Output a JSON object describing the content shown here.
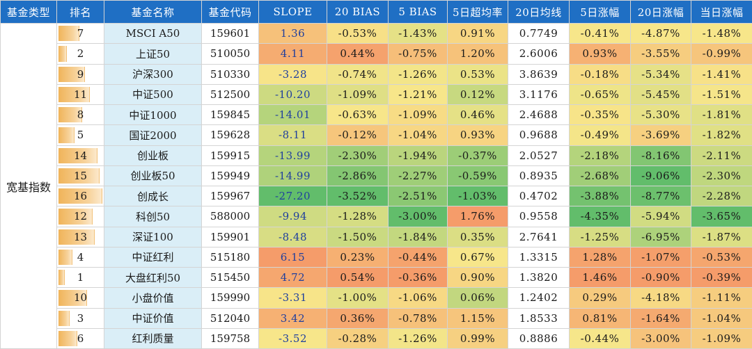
{
  "headers": [
    "基金类型",
    "排名",
    "基金名称",
    "基金代码",
    "SLOPE",
    "20 BIAS",
    "5 BIAS",
    "5日超均率",
    "20日均线",
    "5日涨幅",
    "20日涨幅",
    "当日涨幅"
  ],
  "category": "宽基指数",
  "colors": {
    "header_bg": "#1f6fc4",
    "name_bg": "#daeef7",
    "rank_bar": "#f0b45a",
    "strong_green": "#62bd6b",
    "neutral_yellow": "#f7e68a",
    "strong_orange": "#f59c6a"
  },
  "chart_data": {
    "type": "table",
    "columns": [
      "基金类型",
      "排名",
      "基金名称",
      "基金代码",
      "SLOPE",
      "20 BIAS",
      "5 BIAS",
      "5日超均率",
      "20日均线",
      "5日涨幅",
      "20日涨幅",
      "当日涨幅"
    ],
    "rows": [
      {
        "rank": "7",
        "name": "MSCI A50",
        "code": "159601",
        "slope": "1.36",
        "bias20": "-0.53%",
        "bias5": "-1.43%",
        "excess5": "0.91%",
        "ma20": "0.7749",
        "chg5": "-0.41%",
        "chg20": "-4.87%",
        "chg1": "-1.48%"
      },
      {
        "rank": "2",
        "name": "上证50",
        "code": "510050",
        "slope": "4.11",
        "bias20": "0.44%",
        "bias5": "-0.75%",
        "excess5": "1.20%",
        "ma20": "2.6006",
        "chg5": "0.93%",
        "chg20": "-3.55%",
        "chg1": "-0.99%"
      },
      {
        "rank": "9",
        "name": "沪深300",
        "code": "510330",
        "slope": "-3.28",
        "bias20": "-0.74%",
        "bias5": "-1.26%",
        "excess5": "0.53%",
        "ma20": "3.8639",
        "chg5": "-0.18%",
        "chg20": "-5.34%",
        "chg1": "-1.41%"
      },
      {
        "rank": "11",
        "name": "中证500",
        "code": "512500",
        "slope": "-10.20",
        "bias20": "-1.09%",
        "bias5": "-1.21%",
        "excess5": "0.12%",
        "ma20": "3.1176",
        "chg5": "-0.65%",
        "chg20": "-5.45%",
        "chg1": "-1.51%"
      },
      {
        "rank": "8",
        "name": "中证1000",
        "code": "159845",
        "slope": "-14.01",
        "bias20": "-0.63%",
        "bias5": "-1.09%",
        "excess5": "0.46%",
        "ma20": "2.4688",
        "chg5": "-0.35%",
        "chg20": "-5.30%",
        "chg1": "-1.81%"
      },
      {
        "rank": "5",
        "name": "国证2000",
        "code": "159628",
        "slope": "-8.11",
        "bias20": "-0.12%",
        "bias5": "-1.04%",
        "excess5": "0.93%",
        "ma20": "0.9688",
        "chg5": "-0.49%",
        "chg20": "-3.69%",
        "chg1": "-1.82%"
      },
      {
        "rank": "14",
        "name": "创业板",
        "code": "159915",
        "slope": "-13.99",
        "bias20": "-2.30%",
        "bias5": "-1.94%",
        "excess5": "-0.37%",
        "ma20": "2.0527",
        "chg5": "-2.18%",
        "chg20": "-8.16%",
        "chg1": "-2.11%"
      },
      {
        "rank": "15",
        "name": "创业板50",
        "code": "159949",
        "slope": "-14.99",
        "bias20": "-2.86%",
        "bias5": "-2.27%",
        "excess5": "-0.59%",
        "ma20": "0.8935",
        "chg5": "-2.68%",
        "chg20": "-9.06%",
        "chg1": "-2.30%"
      },
      {
        "rank": "16",
        "name": "创成长",
        "code": "159967",
        "slope": "-27.20",
        "bias20": "-3.52%",
        "bias5": "-2.51%",
        "excess5": "-1.03%",
        "ma20": "0.4702",
        "chg5": "-3.88%",
        "chg20": "-8.77%",
        "chg1": "-2.28%"
      },
      {
        "rank": "12",
        "name": "科创50",
        "code": "588000",
        "slope": "-9.94",
        "bias20": "-1.28%",
        "bias5": "-3.00%",
        "excess5": "1.76%",
        "ma20": "0.9558",
        "chg5": "-4.35%",
        "chg20": "-5.94%",
        "chg1": "-3.65%"
      },
      {
        "rank": "13",
        "name": "深证100",
        "code": "159901",
        "slope": "-8.48",
        "bias20": "-1.50%",
        "bias5": "-1.84%",
        "excess5": "0.35%",
        "ma20": "2.7641",
        "chg5": "-1.25%",
        "chg20": "-6.95%",
        "chg1": "-1.87%"
      },
      {
        "rank": "4",
        "name": "中证红利",
        "code": "515180",
        "slope": "6.15",
        "bias20": "0.23%",
        "bias5": "-0.44%",
        "excess5": "0.67%",
        "ma20": "1.3315",
        "chg5": "1.28%",
        "chg20": "-1.07%",
        "chg1": "-0.53%"
      },
      {
        "rank": "1",
        "name": "大盘红利50",
        "code": "515450",
        "slope": "4.72",
        "bias20": "0.54%",
        "bias5": "-0.36%",
        "excess5": "0.90%",
        "ma20": "1.3820",
        "chg5": "1.46%",
        "chg20": "-0.90%",
        "chg1": "-0.39%"
      },
      {
        "rank": "10",
        "name": "小盘价值",
        "code": "159990",
        "slope": "-3.31",
        "bias20": "-1.00%",
        "bias5": "-1.06%",
        "excess5": "0.06%",
        "ma20": "1.2402",
        "chg5": "0.29%",
        "chg20": "-4.18%",
        "chg1": "-1.11%"
      },
      {
        "rank": "3",
        "name": "中证价值",
        "code": "512040",
        "slope": "3.42",
        "bias20": "0.36%",
        "bias5": "-0.78%",
        "excess5": "1.15%",
        "ma20": "1.8533",
        "chg5": "0.81%",
        "chg20": "-1.64%",
        "chg1": "-1.04%"
      },
      {
        "rank": "6",
        "name": "红利质量",
        "code": "159758",
        "slope": "-3.52",
        "bias20": "-0.28%",
        "bias5": "-1.26%",
        "excess5": "0.99%",
        "ma20": "0.8886",
        "chg5": "-0.44%",
        "chg20": "-3.00%",
        "chg1": "-1.09%"
      }
    ]
  }
}
